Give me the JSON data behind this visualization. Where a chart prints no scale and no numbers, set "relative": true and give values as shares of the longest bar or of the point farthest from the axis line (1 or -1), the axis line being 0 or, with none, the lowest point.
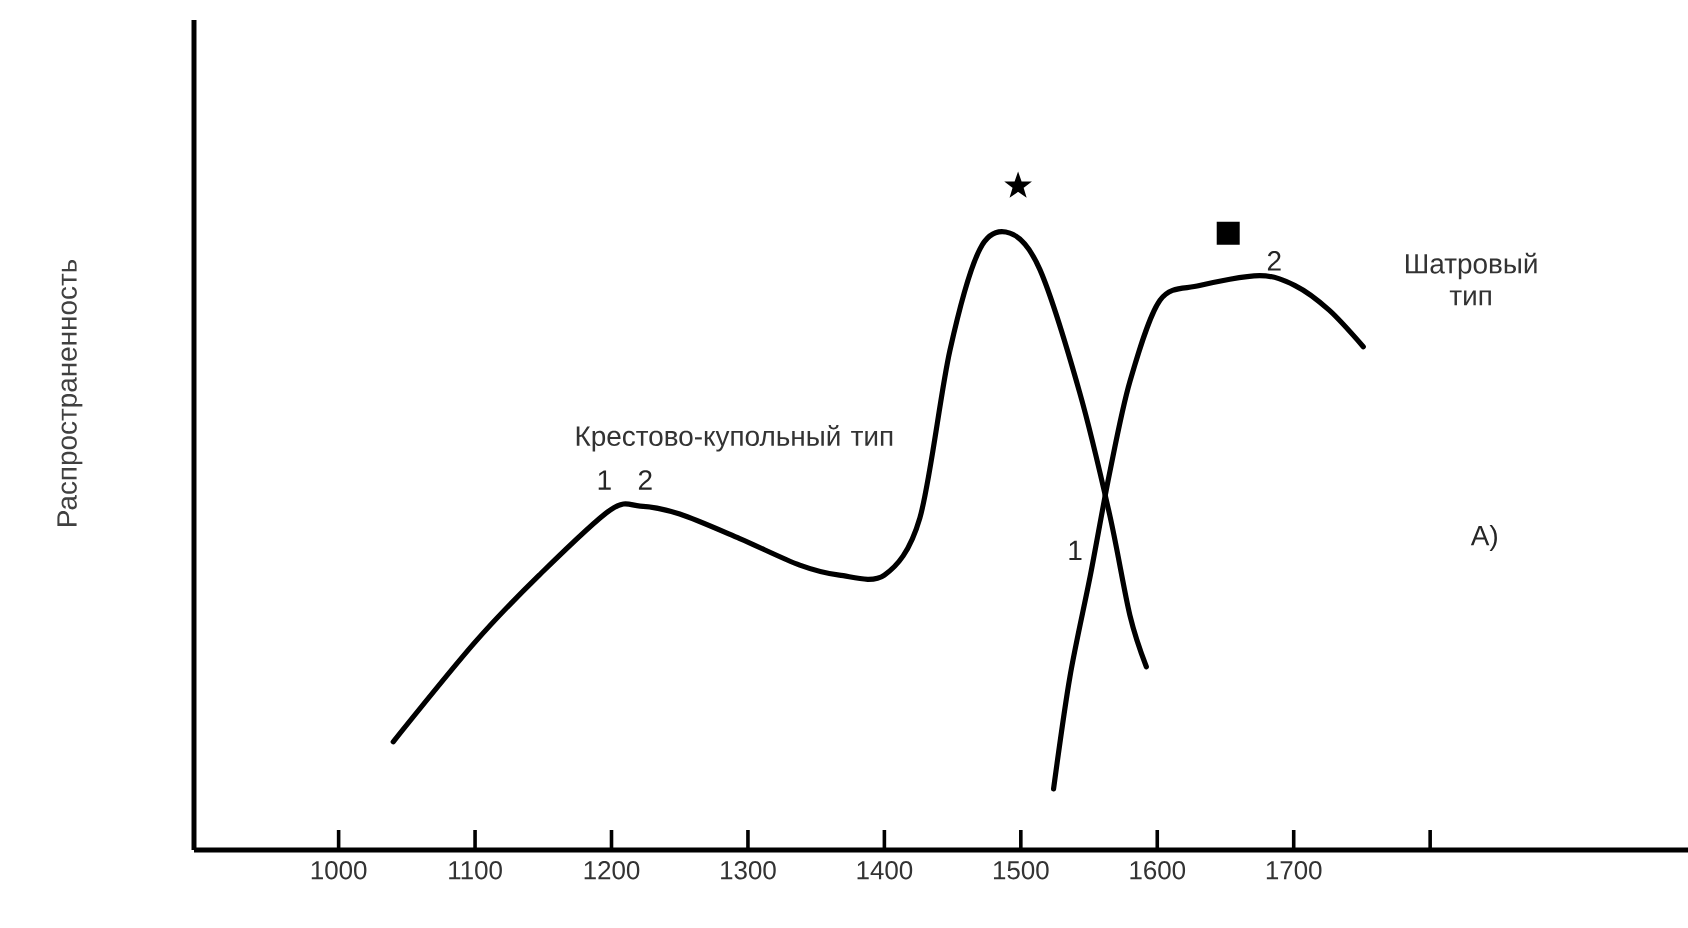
{
  "chart_data": {
    "type": "line",
    "relative": true,
    "ylabel": "Распространенность",
    "xlim": [
      894,
      1989
    ],
    "xticks": [
      1000,
      1100,
      1200,
      1300,
      1400,
      1500,
      1600,
      1700,
      {
        "value": 1800,
        "label": null
      }
    ],
    "tick_labels": "x",
    "series": [
      {
        "name": "Крестово-купольный тип",
        "color": "#000000",
        "x": [
          1040,
          1100,
          1147,
          1199,
          1221,
          1250,
          1294,
          1338,
          1367,
          1400,
          1426,
          1448,
          1470,
          1492,
          1514,
          1543,
          1565,
          1580,
          1592
        ],
        "values": [
          0.163,
          0.313,
          0.414,
          0.512,
          0.518,
          0.506,
          0.469,
          0.429,
          0.414,
          0.414,
          0.5,
          0.752,
          0.905,
          0.929,
          0.874,
          0.69,
          0.506,
          0.353,
          0.276
        ]
      },
      {
        "name": "Шатровый тип",
        "color": "#000000",
        "x": [
          1524,
          1536,
          1551,
          1565,
          1580,
          1602,
          1631,
          1675,
          1701,
          1726,
          1751
        ],
        "values": [
          0.092,
          0.261,
          0.414,
          0.567,
          0.706,
          0.828,
          0.85,
          0.865,
          0.85,
          0.813,
          0.758
        ]
      },
      {
        "type": "scatter",
        "marker": "star",
        "color": "#000000",
        "x": [
          1498
        ],
        "values": [
          1.0
        ]
      },
      {
        "type": "scatter",
        "marker": "square",
        "color": "#000000",
        "x": [
          1652
        ],
        "values": [
          0.929
        ]
      }
    ],
    "annotations": [
      {
        "text": "1",
        "x": 1210,
        "y": 0.52
      },
      {
        "text": "2",
        "x": 1240,
        "y": 0.52
      },
      {
        "text": "1",
        "x": 1555,
        "y": 0.414
      },
      {
        "text": "2",
        "x": 1701,
        "y": 0.85
      },
      "A)"
    ]
  }
}
